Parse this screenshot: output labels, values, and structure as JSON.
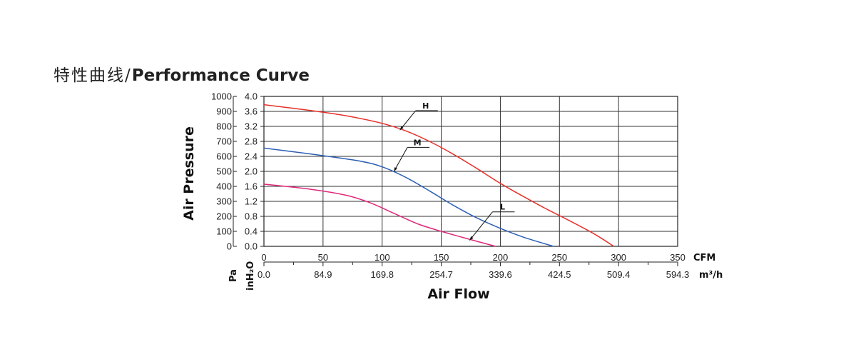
{
  "title": {
    "cn": "特性曲线/",
    "en": "Performance Curve"
  },
  "chart_data": {
    "type": "line",
    "xlabel": "Air Flow",
    "ylabel": "Air Pressure",
    "x_unit_primary": "CFM",
    "x_unit_secondary": "m³/h",
    "y_unit_pa": "Pa",
    "y_unit_inh2o": "inH₂O",
    "xlim": [
      0,
      350
    ],
    "ylim_pa": [
      0,
      1000
    ],
    "ylim_inh2o": [
      0,
      4.0
    ],
    "x_ticks_cfm": [
      "0",
      "50",
      "100",
      "150",
      "200",
      "250",
      "300",
      "350"
    ],
    "x_ticks_m3h": [
      "0.0",
      "84.9",
      "169.8",
      "254.7",
      "339.6",
      "424.5",
      "509.4",
      "594.3"
    ],
    "y_ticks_pa": [
      "0",
      "100",
      "200",
      "300",
      "400",
      "500",
      "600",
      "700",
      "800",
      "900",
      "1000"
    ],
    "y_ticks_inh2o": [
      "0.0",
      "0.4",
      "0.8",
      "1.2",
      "1.6",
      "2.0",
      "2.4",
      "2.8",
      "3.2",
      "3.6",
      "4.0"
    ],
    "grid": true,
    "series": [
      {
        "name": "H",
        "color": "#e8312a",
        "x": [
          0,
          40,
          70,
          100,
          120,
          140,
          160,
          180,
          200,
          220,
          240,
          260,
          280,
          296
        ],
        "y": [
          945,
          905,
          870,
          820,
          770,
          700,
          615,
          520,
          420,
          330,
          245,
          165,
          80,
          0
        ]
      },
      {
        "name": "M",
        "color": "#2c5fb5",
        "x": [
          0,
          40,
          80,
          100,
          120,
          140,
          160,
          180,
          200,
          220,
          245
        ],
        "y": [
          655,
          615,
          570,
          530,
          460,
          370,
          275,
          190,
          120,
          60,
          0
        ]
      },
      {
        "name": "L",
        "color": "#e0297a",
        "x": [
          0,
          40,
          70,
          90,
          110,
          130,
          150,
          170,
          196
        ],
        "y": [
          415,
          380,
          340,
          290,
          220,
          150,
          100,
          55,
          0
        ]
      }
    ]
  }
}
